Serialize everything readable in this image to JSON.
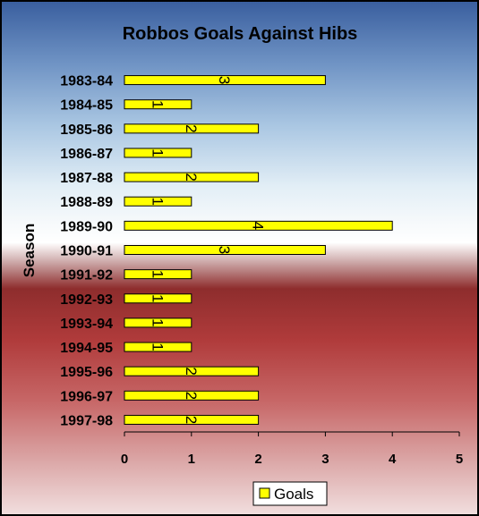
{
  "chart_data": {
    "type": "bar",
    "orientation": "horizontal",
    "title": "Robbos Goals Against Hibs",
    "ylabel": "Season",
    "xlabel": "",
    "categories": [
      "1983-84",
      "1984-85",
      "1985-86",
      "1986-87",
      "1987-88",
      "1988-89",
      "1989-90",
      "1990-91",
      "1991-92",
      "1992-93",
      "1993-94",
      "1994-95",
      "1995-96",
      "1996-97",
      "1997-98"
    ],
    "series": [
      {
        "name": "Goals",
        "values": [
          3,
          1,
          2,
          1,
          2,
          1,
          4,
          3,
          1,
          1,
          1,
          1,
          2,
          2,
          2
        ]
      }
    ],
    "xlim": [
      0,
      5
    ],
    "xticks": [
      "0",
      "1",
      "2",
      "3",
      "4",
      "5"
    ],
    "bar_color": "#ffff00",
    "legend_position": "bottom",
    "grid": false,
    "data_labels": true
  }
}
